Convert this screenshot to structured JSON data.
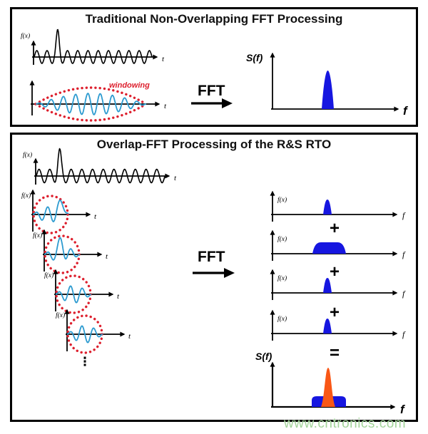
{
  "top": {
    "title": "Traditional Non-Overlapping FFT Processing",
    "signal": {
      "y_label": "f(x)",
      "x_label": "t"
    },
    "window": {
      "x_label": "t",
      "note": "windowing"
    },
    "fft_label": "FFT",
    "spectrum": {
      "y_label": "S(f)",
      "x_label": "f"
    }
  },
  "bottom": {
    "title": "Overlap-FFT Processing of the R&S RTO",
    "signal": {
      "y_label": "f(x)",
      "x_label": "t"
    },
    "segments": [
      {
        "y_label": "f(x)",
        "x_label": "t"
      },
      {
        "y_label": "f(x)",
        "x_label": "t"
      },
      {
        "y_label": "f(x)",
        "x_label": "t"
      },
      {
        "y_label": "f(x)",
        "x_label": "t"
      }
    ],
    "ellipsis": "⋮",
    "fft_label": "FFT",
    "spectra": [
      {
        "y_label": "f(x)",
        "x_label": "f"
      },
      {
        "y_label": "f(x)",
        "x_label": "f"
      },
      {
        "y_label": "f(x)",
        "x_label": "f"
      },
      {
        "y_label": "f(x)",
        "x_label": "f"
      }
    ],
    "plus_sign": "+",
    "equals_sign": "=",
    "result": {
      "y_label": "S(f)",
      "x_label": "f"
    }
  },
  "watermark": {
    "text": "www.cntronics.com",
    "color": "#a3d49a"
  },
  "colors": {
    "spectrum_fill": "#1616e0",
    "result_peak_fill": "#f95716",
    "window_envelope_stroke": "#dd1f2d",
    "windowed_wave_stroke": "#2d9bd0",
    "border": "#000000"
  }
}
